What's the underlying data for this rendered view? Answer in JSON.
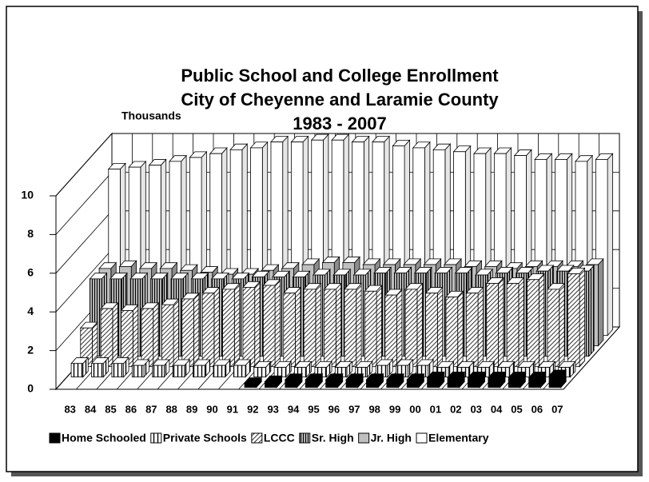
{
  "chart_data": {
    "type": "bar3d",
    "title": "Public School and College Enrollment",
    "subtitle": "City of Cheyenne and Laramie County",
    "period": "1983 - 2007",
    "y_label": "Thousands",
    "categories": [
      "83",
      "84",
      "85",
      "86",
      "87",
      "88",
      "89",
      "90",
      "91",
      "92",
      "93",
      "94",
      "95",
      "96",
      "97",
      "98",
      "99",
      "00",
      "01",
      "02",
      "03",
      "04",
      "05",
      "06",
      "07"
    ],
    "ylim": [
      0,
      10
    ],
    "yticks": [
      0,
      2,
      4,
      6,
      8,
      10
    ],
    "grid": true,
    "series": [
      {
        "name": "Home Schooled",
        "color": "#000000",
        "pattern": "solid",
        "values": [
          null,
          null,
          null,
          null,
          null,
          null,
          null,
          null,
          null,
          0.2,
          0.3,
          0.4,
          0.4,
          0.4,
          0.4,
          0.4,
          0.4,
          0.4,
          0.5,
          0.5,
          0.5,
          0.5,
          0.5,
          0.5,
          0.6
        ]
      },
      {
        "name": "Private Schools",
        "color": "#000000",
        "pattern": "vertical",
        "values": [
          0.7,
          0.7,
          0.7,
          0.6,
          0.6,
          0.6,
          0.6,
          0.6,
          0.6,
          0.5,
          0.5,
          0.5,
          0.5,
          0.5,
          0.5,
          0.6,
          0.6,
          0.6,
          0.5,
          0.5,
          0.5,
          0.5,
          0.5,
          0.5,
          0.5
        ]
      },
      {
        "name": "LCCC",
        "color": "#000000",
        "pattern": "diagonal",
        "values": [
          2.0,
          3.0,
          2.9,
          3.0,
          3.2,
          3.5,
          3.8,
          4.0,
          4.1,
          4.2,
          3.8,
          4.0,
          4.0,
          4.0,
          3.9,
          3.7,
          4.0,
          3.8,
          3.6,
          3.8,
          4.3,
          4.3,
          4.5,
          4.0,
          4.8
        ]
      },
      {
        "name": "Sr. High",
        "color": "#000000",
        "pattern": "vertical-dense",
        "values": [
          4.0,
          4.0,
          4.0,
          4.0,
          4.0,
          4.0,
          4.0,
          4.0,
          4.1,
          4.1,
          4.1,
          4.2,
          4.2,
          4.2,
          4.3,
          4.3,
          4.3,
          4.3,
          4.3,
          4.2,
          4.3,
          4.3,
          4.4,
          4.4,
          4.4
        ]
      },
      {
        "name": "Jr. High",
        "color": "#bfbfbf",
        "pattern": "solid",
        "values": [
          4.0,
          4.1,
          4.0,
          4.0,
          3.9,
          3.8,
          3.7,
          3.7,
          3.9,
          4.0,
          4.2,
          4.3,
          4.3,
          4.2,
          4.2,
          4.2,
          4.2,
          4.2,
          4.1,
          4.1,
          4.0,
          4.1,
          4.1,
          4.1,
          4.2
        ]
      },
      {
        "name": "Elementary",
        "color": "#ffffff",
        "pattern": "solid",
        "values": [
          8.6,
          8.7,
          8.8,
          9.0,
          9.2,
          9.4,
          9.6,
          9.7,
          10.0,
          10.0,
          10.1,
          10.1,
          10.0,
          10.0,
          9.8,
          9.7,
          9.6,
          9.5,
          9.4,
          9.4,
          9.3,
          9.1,
          9.1,
          9.0,
          9.1
        ]
      }
    ]
  }
}
